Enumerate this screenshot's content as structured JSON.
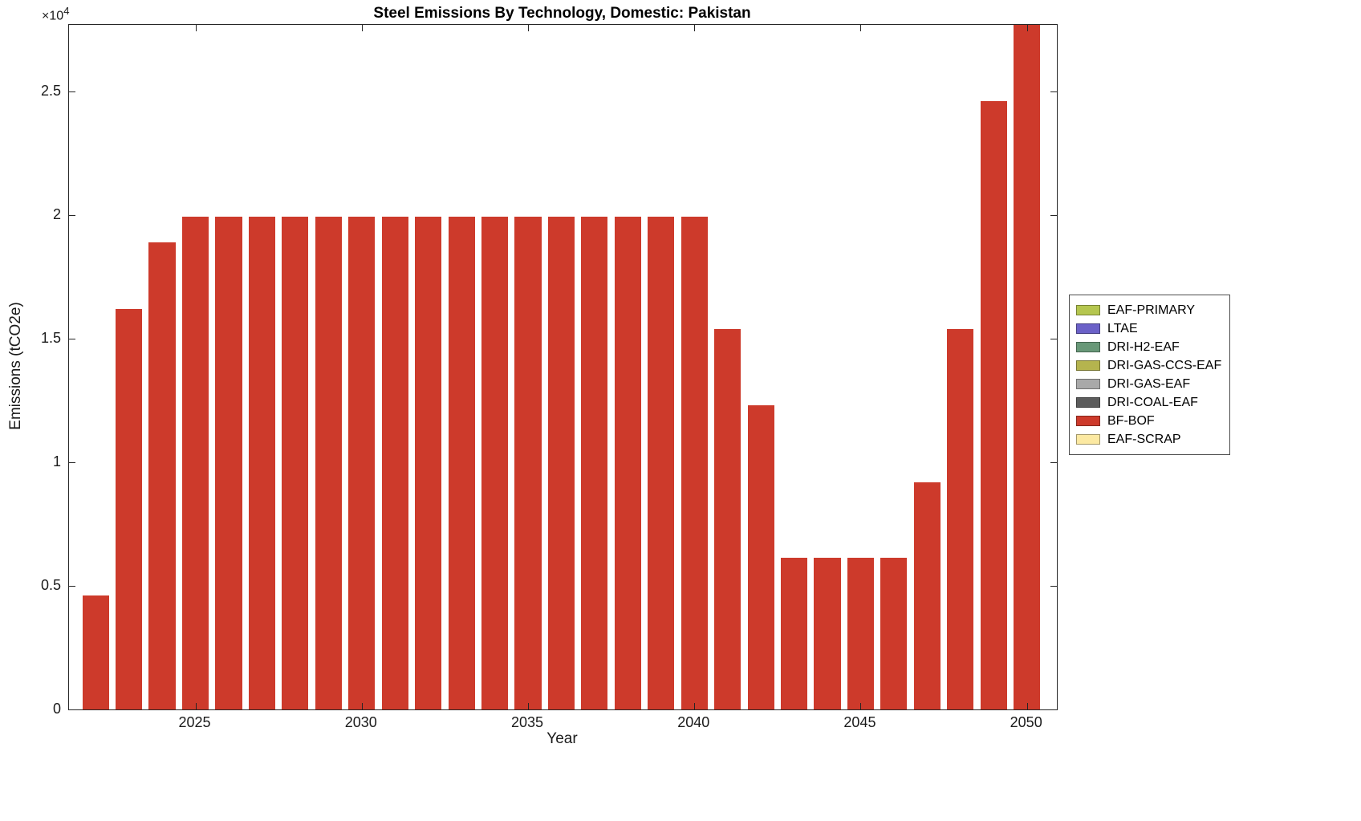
{
  "chart_data": {
    "type": "bar",
    "title": "Steel Emissions By Technology, Domestic: Pakistan",
    "xlabel": "Year",
    "ylabel": "Emissions (tCO2e)",
    "y_multiplier_base": "×10",
    "y_multiplier_exp": "4",
    "grid": false,
    "legend_position": "right-outside",
    "xlim": [
      2021.2,
      2050.9
    ],
    "ylim": [
      0,
      27700
    ],
    "x_ticks": [
      2025,
      2030,
      2035,
      2040,
      2045,
      2050
    ],
    "x_tick_labels": [
      "2025",
      "2030",
      "2035",
      "2040",
      "2045",
      "2050"
    ],
    "y_ticks": [
      0,
      5000,
      10000,
      15000,
      20000,
      25000
    ],
    "y_tick_labels": [
      "0",
      "0.5",
      "1",
      "1.5",
      "2",
      "2.5"
    ],
    "bar_width_fraction": 0.8,
    "series": [
      {
        "name": "BF-BOF",
        "color": "#cd3a2b",
        "categories": [
          2022,
          2023,
          2024,
          2025,
          2026,
          2027,
          2028,
          2029,
          2030,
          2031,
          2032,
          2033,
          2034,
          2035,
          2036,
          2037,
          2038,
          2039,
          2040,
          2041,
          2042,
          2043,
          2044,
          2045,
          2046,
          2047,
          2048,
          2049,
          2050
        ],
        "values": [
          4600,
          16200,
          18900,
          19950,
          19950,
          19950,
          19950,
          19950,
          19950,
          19950,
          19950,
          19950,
          19950,
          19950,
          19950,
          19950,
          19950,
          19950,
          19950,
          15400,
          12300,
          6150,
          6150,
          6150,
          6150,
          9200,
          15400,
          24600,
          27700
        ]
      }
    ],
    "legend": [
      {
        "label": "EAF-PRIMARY",
        "color": "#b5c64f"
      },
      {
        "label": "LTAE",
        "color": "#6b61c8"
      },
      {
        "label": "DRI-H2-EAF",
        "color": "#689878"
      },
      {
        "label": "DRI-GAS-CCS-EAF",
        "color": "#b5b44e"
      },
      {
        "label": "DRI-GAS-EAF",
        "color": "#a9a9a9"
      },
      {
        "label": "DRI-COAL-EAF",
        "color": "#5c5c5c"
      },
      {
        "label": "BF-BOF",
        "color": "#cd3a2b"
      },
      {
        "label": "EAF-SCRAP",
        "color": "#fce9a2"
      }
    ]
  }
}
